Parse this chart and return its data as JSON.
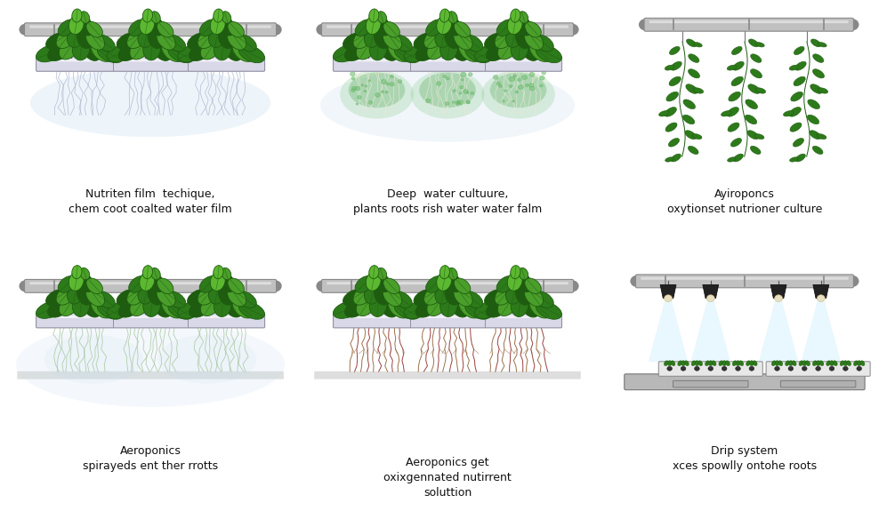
{
  "background": "#ffffff",
  "panel_labels": [
    "Nutriten film  techique,\nchem coot coalted water film",
    "Deep  water cultuure,\nplants roots rish water water falm",
    "Ayiroponcs\noxytionset nutrioner culture",
    "Aeroponics\nspirayeds ent ther rrotts",
    "Aeroponics get\noxixgennated nutirrent\nsoluttion",
    "Drip system\nxces spowlly ontohe roots"
  ],
  "leaf_dark": "#1e5c10",
  "leaf_mid": "#2d7a1a",
  "leaf_light": "#4a9e2a",
  "leaf_bright": "#5cb830",
  "root_tan": "#c8b080",
  "root_brown": "#8b5a2b",
  "root_red": "#8b2020",
  "root_light_green": "#90c890",
  "tube_gray": "#c0c0c0",
  "tube_dark": "#888888",
  "tube_highlight": "#e8e8e8",
  "trough_face": "#d8d8e8",
  "trough_edge": "#9090a0",
  "lamp_body": "#222222",
  "lamp_dark": "#111111",
  "beam_color": "#d0eeff",
  "mist_blue": "#c8dff0",
  "mist_green": "#b0d8b0",
  "floor_gray": "#c8c8c8",
  "platform_gray": "#b8b8b8"
}
